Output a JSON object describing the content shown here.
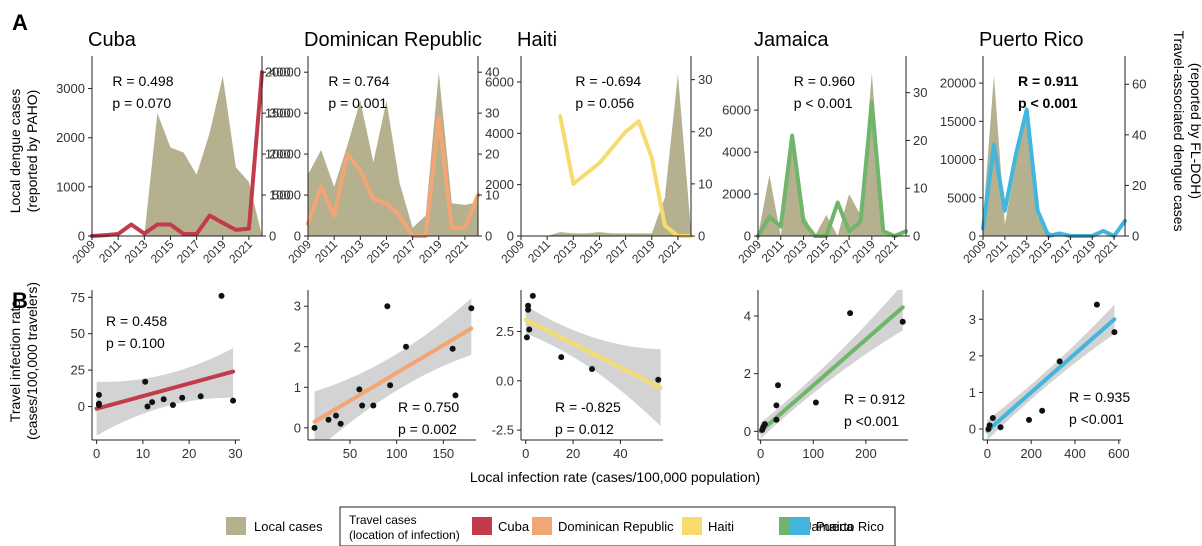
{
  "panel_labels": [
    "A",
    "B"
  ],
  "row_a_ylabel_left": [
    "Local dengue cases",
    "(reported by PAHO)"
  ],
  "row_a_ylabel_right": [
    "Travel-associated dengue cases",
    "(reported by FL-DOH)"
  ],
  "row_b_ylabel": [
    "Travel infection rate",
    "(cases/100,000 travelers)"
  ],
  "row_b_xlabel": "Local infection rate (cases/100,000 population)",
  "legend": {
    "local_label": "Local cases",
    "travel_title": [
      "Travel cases",
      "(location of infection)"
    ],
    "local_color": "#b5b08d"
  },
  "chart_data": [
    {
      "type": "area",
      "title": "Cuba",
      "color": "#c23b4b",
      "x": [
        2009,
        2010,
        2011,
        2012,
        2013,
        2014,
        2015,
        2016,
        2017,
        2018,
        2019,
        2020,
        2021,
        2022
      ],
      "local_values": [
        0,
        0,
        0,
        0,
        0,
        2500,
        1800,
        1700,
        1250,
        2100,
        3250,
        1400,
        1100,
        0
      ],
      "travel_values": [
        0,
        2,
        5,
        28,
        6,
        28,
        28,
        5,
        5,
        50,
        32,
        15,
        18,
        400
      ],
      "ylim_left": [
        0,
        3500
      ],
      "yticks_left": [
        0,
        1000,
        2000,
        3000
      ],
      "ylim_right": [
        0,
        420
      ],
      "yticks_right": [
        0,
        100,
        200,
        300,
        400
      ],
      "xticks": [
        "2009",
        "2011",
        "2013",
        "2015",
        "2017",
        "2019",
        "2021"
      ],
      "stats": [
        "R = 0.498",
        "p = 0.070"
      ],
      "stats_bold": false
    },
    {
      "type": "area",
      "title": "Dominican Republic",
      "color": "#f2a676",
      "x": [
        2009,
        2010,
        2011,
        2012,
        2013,
        2014,
        2015,
        2016,
        2017,
        2018,
        2019,
        2020,
        2021,
        2022
      ],
      "local_values": [
        7500,
        10500,
        6000,
        11000,
        16500,
        9000,
        16500,
        6500,
        1000,
        2500,
        20000,
        4000,
        3800,
        4100
      ],
      "travel_values": [
        3,
        12,
        5,
        20,
        16,
        9,
        8,
        5,
        0,
        0,
        29,
        2,
        2,
        10
      ],
      "ylim_left": [
        0,
        21000
      ],
      "yticks_left": [
        0,
        5000,
        10000,
        15000,
        20000
      ],
      "ylim_right": [
        0,
        42
      ],
      "yticks_right": [
        0,
        10,
        20,
        30,
        40
      ],
      "xticks": [
        "2009",
        "2011",
        "2013",
        "2015",
        "2017",
        "2019",
        "2021"
      ],
      "stats": [
        "R = 0.764",
        "p = 0.001"
      ],
      "stats_bold": false
    },
    {
      "type": "area",
      "title": "Haiti",
      "color": "#f6dc6c",
      "x": [
        2009,
        2010,
        2011,
        2012,
        2013,
        2014,
        2015,
        2016,
        2017,
        2018,
        2019,
        2020,
        2021,
        2022
      ],
      "local_values": [
        0,
        0,
        0,
        150,
        100,
        100,
        150,
        100,
        100,
        100,
        100,
        1500,
        6300,
        200
      ],
      "travel_values": [
        null,
        null,
        null,
        23,
        10,
        12,
        14,
        17,
        20,
        22,
        15,
        2,
        0,
        0
      ],
      "ylim_left": [
        0,
        6700
      ],
      "yticks_left": [
        0,
        2000,
        4000,
        6000
      ],
      "ylim_right": [
        0,
        33
      ],
      "yticks_right": [
        0,
        10,
        20,
        30
      ],
      "xticks": [
        "2009",
        "2011",
        "2013",
        "2015",
        "2017",
        "2019",
        "2021"
      ],
      "stats": [
        "R = -0.694",
        "p = 0.056"
      ],
      "stats_bold": false
    },
    {
      "type": "area",
      "title": "Jamaica",
      "color": "#6fb56b",
      "x": [
        2009,
        2010,
        2011,
        2012,
        2013,
        2014,
        2015,
        2016,
        2017,
        2018,
        2019,
        2020,
        2021,
        2022
      ],
      "local_values": [
        0,
        2900,
        0,
        4900,
        1000,
        0,
        1000,
        0,
        2000,
        1000,
        7800,
        200,
        0,
        0
      ],
      "travel_values": [
        0,
        4,
        2,
        21,
        3,
        0,
        0,
        7,
        1,
        3,
        28,
        1,
        0,
        1
      ],
      "ylim_left": [
        0,
        8200
      ],
      "yticks_left": [
        0,
        2000,
        4000,
        6000
      ],
      "ylim_right": [
        0,
        36
      ],
      "yticks_right": [
        0,
        10,
        20,
        30
      ],
      "xticks": [
        "2009",
        "2011",
        "2013",
        "2015",
        "2017",
        "2019",
        "2021"
      ],
      "stats": [
        "R = 0.960",
        "p < 0.001"
      ],
      "stats_bold": false
    },
    {
      "type": "area",
      "title": "Puerto Rico",
      "color": "#43b6dd",
      "x": [
        2009,
        2010,
        2011,
        2012,
        2013,
        2014,
        2015,
        2016,
        2017,
        2018,
        2019,
        2020,
        2021,
        2022
      ],
      "local_values": [
        2000,
        21000,
        1500,
        9500,
        17000,
        2500,
        500,
        200,
        0,
        0,
        0,
        0,
        0,
        0
      ],
      "travel_values": [
        3,
        36,
        10,
        32,
        50,
        10,
        0,
        1,
        0,
        0,
        0,
        2,
        0,
        6
      ],
      "ylim_left": [
        0,
        22500
      ],
      "yticks_left": [
        0,
        5000,
        10000,
        15000,
        20000
      ],
      "ylim_right": [
        0,
        68
      ],
      "yticks_right": [
        0,
        20,
        40,
        60
      ],
      "xticks": [
        "2009",
        "2011",
        "2013",
        "2015",
        "2017",
        "2019",
        "2021"
      ],
      "stats": [
        "R = 0.911",
        "p < 0.001"
      ],
      "stats_bold": true
    },
    {
      "type": "scatter",
      "title": "Cuba",
      "color": "#c23b4b",
      "points": [
        [
          0.5,
          8
        ],
        [
          0.5,
          2
        ],
        [
          0.5,
          1
        ],
        [
          10.5,
          17
        ],
        [
          11,
          0
        ],
        [
          12,
          3
        ],
        [
          14.5,
          5
        ],
        [
          16.5,
          1
        ],
        [
          18.5,
          6
        ],
        [
          22.5,
          7
        ],
        [
          27,
          76
        ],
        [
          29.5,
          4
        ]
      ],
      "fit_start": [
        0,
        -1.5
      ],
      "fit_end": [
        29.5,
        24
      ],
      "band_lower": [
        -20,
        6
      ],
      "band_upper": [
        17,
        40
      ],
      "xlim": [
        -1,
        31
      ],
      "ylim": [
        -23,
        80
      ],
      "xticks": [
        0,
        10,
        20,
        30
      ],
      "yticks": [
        0,
        25,
        50,
        75
      ],
      "stats": [
        "R = 0.458",
        "p = 0.100"
      ]
    },
    {
      "type": "scatter",
      "title": "Dominican Republic",
      "color": "#f2a676",
      "points": [
        [
          12,
          0
        ],
        [
          27,
          0.2
        ],
        [
          35,
          0.3
        ],
        [
          40,
          0.1
        ],
        [
          60,
          0.95
        ],
        [
          63,
          0.55
        ],
        [
          75,
          0.55
        ],
        [
          90,
          3.0
        ],
        [
          93,
          1.05
        ],
        [
          110,
          2.0
        ],
        [
          160,
          1.95
        ],
        [
          163,
          0.8
        ],
        [
          180,
          2.95
        ]
      ],
      "fit_start": [
        12,
        0.15
      ],
      "fit_end": [
        180,
        2.45
      ],
      "band_lower": [
        -0.6,
        1.8
      ],
      "band_upper": [
        0.9,
        3.2
      ],
      "xlim": [
        5,
        185
      ],
      "ylim": [
        -0.3,
        3.4
      ],
      "xticks": [
        50,
        100,
        150
      ],
      "yticks": [
        0,
        1,
        2,
        3
      ],
      "stats": [
        "R = 0.750",
        "p = 0.002"
      ]
    },
    {
      "type": "scatter",
      "title": "Haiti",
      "color": "#f6dc6c",
      "points": [
        [
          0.5,
          2.2
        ],
        [
          1,
          3.8
        ],
        [
          1,
          3.6
        ],
        [
          1.5,
          2.6
        ],
        [
          3,
          4.3
        ],
        [
          15,
          1.2
        ],
        [
          28,
          0.6
        ],
        [
          56,
          0.05
        ]
      ],
      "fit_start": [
        0,
        3.1
      ],
      "fit_end": [
        57,
        -0.35
      ],
      "band_lower": [
        2.4,
        -2.3
      ],
      "band_upper": [
        3.8,
        1.6
      ],
      "xlim": [
        -2,
        58
      ],
      "ylim": [
        -3.0,
        4.6
      ],
      "xticks": [
        0,
        20,
        40
      ],
      "yticks": [
        -2.5,
        0.0,
        2.5
      ],
      "ytick_labels": [
        "-2.5",
        "0.0",
        "2.5"
      ],
      "stats": [
        "R = -0.825",
        "p = 0.012"
      ]
    },
    {
      "type": "scatter",
      "title": "Jamaica",
      "color": "#6fb56b",
      "points": [
        [
          3,
          0.05
        ],
        [
          5,
          0.15
        ],
        [
          8,
          0.25
        ],
        [
          30,
          0.4
        ],
        [
          30,
          0.9
        ],
        [
          33,
          1.6
        ],
        [
          105,
          1.0
        ],
        [
          170,
          4.1
        ],
        [
          270,
          3.8
        ]
      ],
      "fit_start": [
        0,
        0
      ],
      "fit_end": [
        270,
        4.3
      ],
      "band_lower": [
        -0.25,
        3.5
      ],
      "band_upper": [
        0.3,
        5.1
      ],
      "xlim": [
        -5,
        280
      ],
      "ylim": [
        -0.3,
        4.9
      ],
      "xticks": [
        0,
        100,
        200
      ],
      "yticks": [
        0,
        2,
        4
      ],
      "stats": [
        "R = 0.912",
        "p <0.001"
      ]
    },
    {
      "type": "scatter",
      "title": "Puerto Rico",
      "color": "#43b6dd",
      "points": [
        [
          5,
          0.0
        ],
        [
          10,
          0.1
        ],
        [
          25,
          0.3
        ],
        [
          60,
          0.05
        ],
        [
          190,
          0.25
        ],
        [
          250,
          0.5
        ],
        [
          330,
          1.85
        ],
        [
          500,
          3.4
        ],
        [
          580,
          2.65
        ]
      ],
      "fit_start": [
        0,
        -0.05
      ],
      "fit_end": [
        580,
        3.0
      ],
      "band_lower": [
        -0.3,
        2.6
      ],
      "band_upper": [
        0.25,
        3.4
      ],
      "xlim": [
        -20,
        610
      ],
      "ylim": [
        -0.3,
        3.8
      ],
      "xticks": [
        0,
        200,
        400,
        600
      ],
      "yticks": [
        0,
        1,
        2,
        3
      ],
      "stats": [
        "R = 0.935",
        "p <0.001"
      ]
    }
  ]
}
